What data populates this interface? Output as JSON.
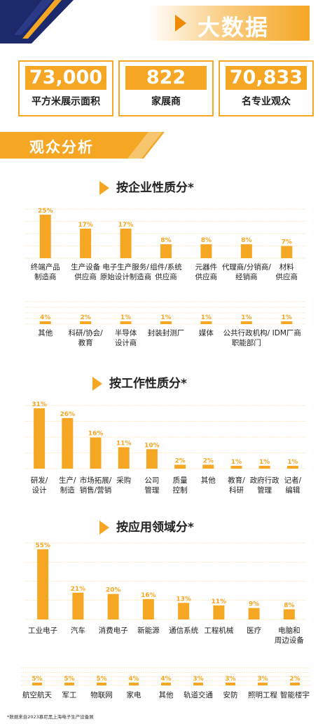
{
  "header": {
    "title": "大数据"
  },
  "stats": [
    {
      "value": "73,000",
      "label": "平方米展示面积"
    },
    {
      "value": "822",
      "label": "家展商"
    },
    {
      "value": "70,833",
      "label": "名专业观众"
    }
  ],
  "section": {
    "title": "观众分析"
  },
  "colors": {
    "accent": "#f5a623",
    "accent_dark": "#f08a00",
    "navy": "#1c2a6b",
    "grid": "#f5c76a"
  },
  "chart_titles": [
    "按企业性质分*",
    "按工作性质分*",
    "按应用领域分*"
  ],
  "chart_data": [
    {
      "type": "bar",
      "title": "按企业性质分*",
      "categories": [
        "终端产品\n制造商",
        "生产设备\n供应商",
        "电子生产服务/\n原始设计制造商",
        "组件/系统\n供应商",
        "元器件\n供应商",
        "代理商/分销商/\n经销商",
        "材料\n供应商",
        "其他",
        "科研/协会/\n教育",
        "半导体\n设计商",
        "封装封测厂",
        "媒体",
        "公共行政机构/\n职能部门",
        "IDM厂商"
      ],
      "values": [
        25,
        17,
        17,
        8,
        8,
        8,
        7,
        4,
        2,
        1,
        1,
        1,
        1,
        1
      ],
      "value_labels": [
        "25%",
        "17%",
        "17%",
        "8%",
        "8%",
        "8%",
        "7%",
        "4%",
        "2%",
        "1%",
        "1%",
        "1%",
        "1%",
        "1%"
      ]
    },
    {
      "type": "bar",
      "title": "按工作性质分*",
      "categories": [
        "研发/\n设计",
        "生产/\n制造",
        "市场拓展/\n销售/营销",
        "采购",
        "公司\n管理",
        "质量\n控制",
        "其他",
        "教育/\n科研",
        "政府行政\n管理",
        "记者/\n编辑"
      ],
      "values": [
        31,
        26,
        16,
        11,
        10,
        2,
        2,
        1,
        1,
        1
      ],
      "value_labels": [
        "31%",
        "26%",
        "16%",
        "11%",
        "10%",
        "2%",
        "2%",
        "1%",
        "1%",
        "1%"
      ]
    },
    {
      "type": "bar",
      "title": "按应用领域分*",
      "categories": [
        "工业电子",
        "汽车",
        "消费电子",
        "新能源",
        "通信系统",
        "工程机械",
        "医疗",
        "电脑和\n周边设备",
        "航空航天",
        "军工",
        "物联网",
        "家电",
        "其他",
        "轨道交通",
        "安防",
        "照明工程",
        "智能楼宇"
      ],
      "values": [
        55,
        21,
        20,
        16,
        13,
        11,
        9,
        8,
        5,
        5,
        5,
        4,
        4,
        3,
        3,
        3,
        2
      ],
      "value_labels": [
        "55%",
        "21%",
        "20%",
        "16%",
        "13%",
        "11%",
        "9%",
        "8%",
        "5%",
        "5%",
        "5%",
        "4%",
        "4%",
        "3%",
        "3%",
        "3%",
        "2%"
      ]
    }
  ],
  "footnote": "*数据来自2023慕尼黑上海电子生产设备展"
}
